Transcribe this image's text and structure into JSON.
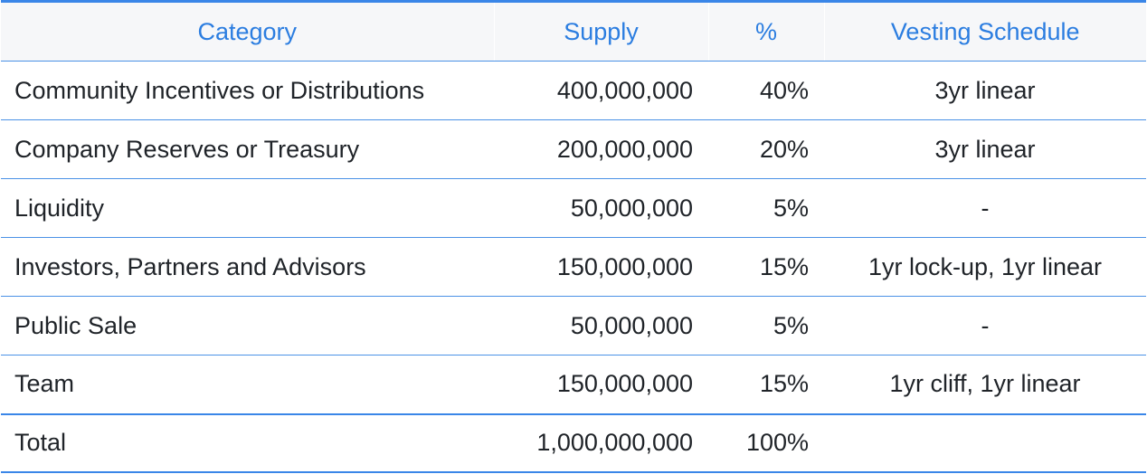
{
  "table": {
    "headers": {
      "category": "Category",
      "supply": "Supply",
      "percent": "%",
      "vesting": "Vesting Schedule"
    },
    "rows": [
      {
        "category": "Community Incentives or Distributions",
        "supply": "400,000,000",
        "percent": "40%",
        "vesting": "3yr linear"
      },
      {
        "category": "Company Reserves or Treasury",
        "supply": "200,000,000",
        "percent": "20%",
        "vesting": "3yr linear"
      },
      {
        "category": "Liquidity",
        "supply": "50,000,000",
        "percent": "5%",
        "vesting": "-"
      },
      {
        "category": "Investors, Partners and Advisors",
        "supply": "150,000,000",
        "percent": "15%",
        "vesting": "1yr lock-up, 1yr linear"
      },
      {
        "category": "Public Sale",
        "supply": "50,000,000",
        "percent": "5%",
        "vesting": "-"
      },
      {
        "category": "Team",
        "supply": "150,000,000",
        "percent": "15%",
        "vesting": "1yr cliff, 1yr linear"
      }
    ],
    "total": {
      "category": "Total",
      "supply": "1,000,000,000",
      "percent": "100%",
      "vesting": ""
    }
  },
  "colors": {
    "header_text": "#2b7de0",
    "header_background": "#f6f7f9",
    "rule": "#4b92e6",
    "body_text": "#1f2328"
  }
}
